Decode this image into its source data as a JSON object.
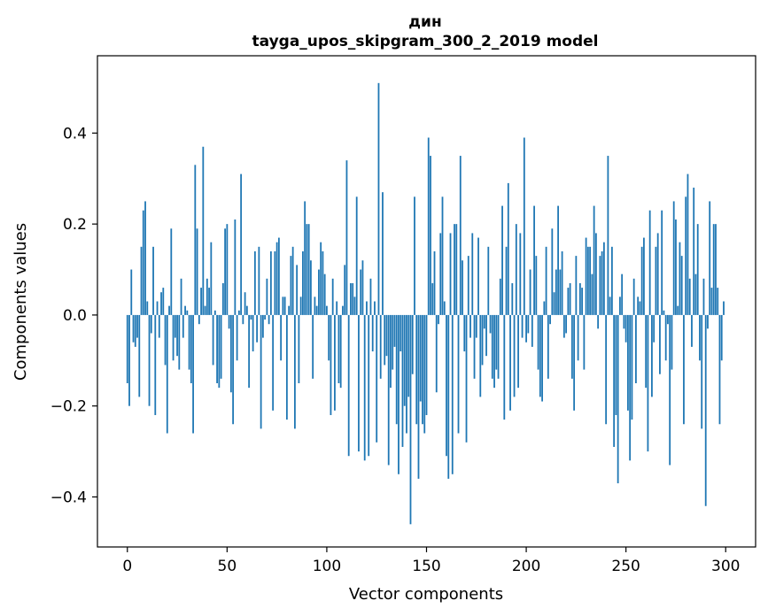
{
  "chart_data": {
    "type": "bar",
    "title": "дин",
    "subtitle": "tayga_upos_skipgram_300_2_2019 model",
    "xlabel": "Vector components",
    "ylabel": "Components values",
    "xlim": [
      -15,
      315
    ],
    "ylim": [
      -0.51,
      0.57
    ],
    "xticks": [
      0,
      50,
      100,
      150,
      200,
      250,
      300
    ],
    "yticks": [
      -0.4,
      -0.2,
      0.0,
      0.2,
      0.4
    ],
    "ytick_labels": [
      "−0.4",
      "−0.2",
      "0.0",
      "0.2",
      "0.4"
    ],
    "grid": false,
    "bar_color": "#1f77b4",
    "x_start": 0,
    "values": [
      -0.15,
      -0.2,
      0.1,
      -0.06,
      -0.07,
      -0.05,
      -0.18,
      0.15,
      0.23,
      0.25,
      0.03,
      -0.2,
      -0.04,
      0.15,
      -0.22,
      0.03,
      -0.05,
      0.05,
      0.06,
      -0.11,
      -0.26,
      0.02,
      0.19,
      -0.1,
      -0.05,
      -0.09,
      -0.12,
      0.08,
      -0.05,
      0.02,
      0.01,
      -0.12,
      -0.15,
      -0.26,
      0.33,
      0.19,
      -0.02,
      0.06,
      0.37,
      0.02,
      0.08,
      0.06,
      0.16,
      -0.11,
      0.01,
      -0.15,
      -0.16,
      -0.14,
      0.07,
      0.19,
      0.2,
      -0.03,
      -0.17,
      -0.24,
      0.21,
      -0.1,
      0.01,
      0.31,
      -0.02,
      0.05,
      0.02,
      -0.16,
      -0.01,
      -0.08,
      0.14,
      -0.06,
      0.15,
      -0.25,
      -0.05,
      -0.01,
      0.08,
      -0.02,
      0.14,
      -0.21,
      0.14,
      0.16,
      0.17,
      -0.1,
      0.04,
      0.04,
      -0.23,
      0.02,
      0.13,
      0.15,
      -0.25,
      0.11,
      -0.15,
      0.04,
      0.14,
      0.25,
      0.2,
      0.2,
      0.12,
      -0.14,
      0.04,
      0.02,
      0.1,
      0.16,
      0.14,
      0.09,
      0.02,
      -0.1,
      -0.22,
      0.08,
      -0.21,
      0.03,
      -0.15,
      -0.16,
      0.02,
      0.11,
      0.34,
      -0.31,
      0.07,
      0.07,
      0.04,
      0.26,
      -0.3,
      0.1,
      0.12,
      -0.32,
      0.03,
      -0.31,
      0.08,
      -0.08,
      0.03,
      -0.28,
      0.51,
      -0.14,
      0.27,
      -0.11,
      -0.09,
      -0.33,
      -0.16,
      -0.12,
      -0.07,
      -0.24,
      -0.35,
      -0.08,
      -0.29,
      -0.2,
      -0.26,
      -0.18,
      -0.46,
      -0.13,
      0.26,
      -0.24,
      -0.36,
      -0.19,
      -0.24,
      -0.26,
      -0.22,
      0.39,
      0.35,
      0.07,
      0.14,
      -0.17,
      -0.02,
      0.18,
      0.26,
      0.03,
      -0.31,
      -0.36,
      0.18,
      -0.35,
      0.2,
      0.2,
      -0.26,
      0.35,
      0.12,
      -0.08,
      -0.28,
      0.13,
      -0.05,
      0.18,
      -0.14,
      -0.05,
      0.17,
      -0.18,
      -0.11,
      -0.03,
      -0.09,
      0.15,
      -0.04,
      -0.14,
      -0.16,
      -0.12,
      -0.14,
      0.08,
      0.24,
      -0.23,
      0.15,
      0.29,
      -0.21,
      0.07,
      -0.18,
      0.2,
      -0.16,
      0.18,
      -0.05,
      0.39,
      -0.06,
      -0.04,
      0.1,
      -0.07,
      0.24,
      0.13,
      -0.12,
      -0.18,
      -0.19,
      0.03,
      0.15,
      -0.14,
      -0.02,
      0.19,
      0.05,
      0.1,
      0.24,
      0.1,
      0.14,
      -0.05,
      -0.04,
      0.06,
      0.07,
      -0.14,
      -0.21,
      0.13,
      -0.1,
      0.07,
      0.06,
      -0.12,
      0.17,
      0.15,
      0.15,
      0.09,
      0.24,
      0.18,
      -0.03,
      0.13,
      0.14,
      0.16,
      -0.24,
      0.35,
      0.04,
      0.15,
      -0.29,
      -0.22,
      -0.37,
      0.04,
      0.09,
      -0.03,
      -0.06,
      -0.21,
      -0.32,
      -0.23,
      0.08,
      -0.15,
      0.04,
      0.03,
      0.15,
      0.17,
      -0.16,
      -0.3,
      0.23,
      -0.18,
      -0.06,
      0.15,
      0.18,
      -0.13,
      0.23,
      0.01,
      -0.1,
      -0.02,
      -0.33,
      -0.12,
      0.25,
      0.21,
      0.02,
      0.16,
      0.13,
      -0.24,
      0.26,
      0.31,
      0.08,
      -0.07,
      0.28,
      0.09,
      0.2,
      -0.1,
      -0.25,
      0.08,
      -0.42,
      -0.03,
      0.25,
      0.06,
      0.2,
      0.2,
      0.06,
      -0.24,
      -0.1,
      0.03
    ]
  }
}
